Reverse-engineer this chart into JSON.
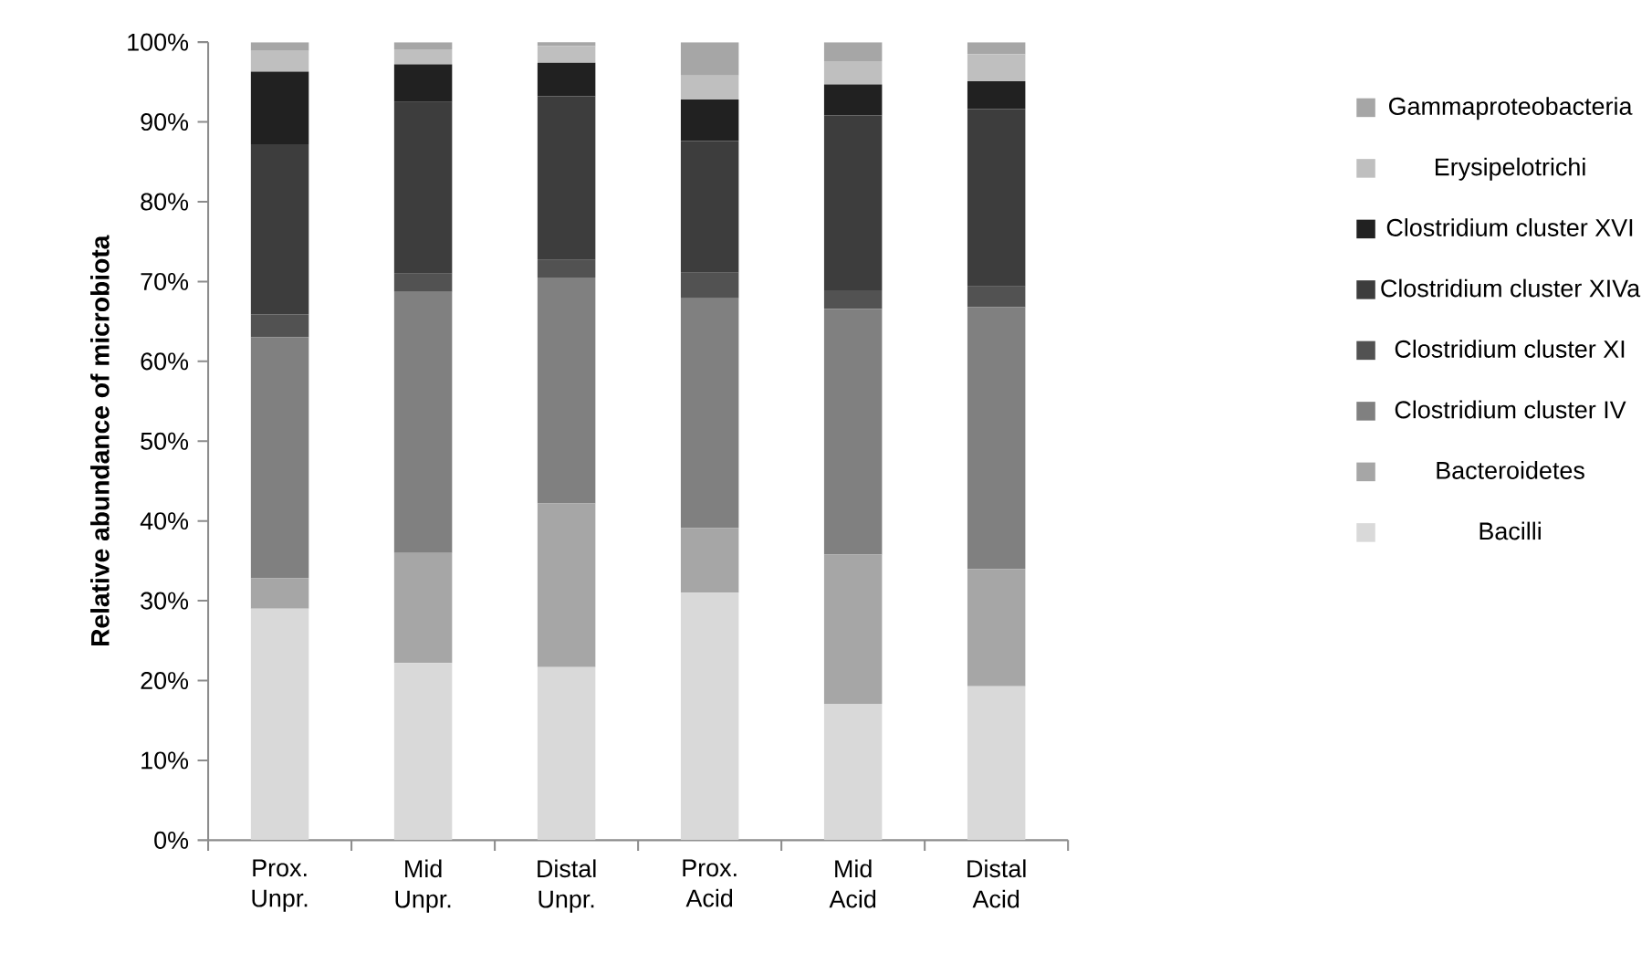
{
  "chart_data": {
    "type": "bar",
    "stacked": true,
    "ylabel": "Relative abundance of microbiota",
    "categories": [
      "Prox. Unpr.",
      "Mid Unpr.",
      "Distal Unpr.",
      "Prox. Acid",
      "Mid Acid",
      "Distal Acid"
    ],
    "series": [
      {
        "name": "Bacilli",
        "color": "#d9d9d9",
        "values": [
          29.0,
          22.2,
          21.7,
          31.0,
          17.1,
          19.3
        ]
      },
      {
        "name": "Bacteroidetes",
        "color": "#a6a6a6",
        "values": [
          3.8,
          13.8,
          20.5,
          8.1,
          18.7,
          14.7
        ]
      },
      {
        "name": "Clostridium cluster IV",
        "color": "#808080",
        "values": [
          30.2,
          32.7,
          28.3,
          28.8,
          30.8,
          32.8
        ]
      },
      {
        "name": "Clostridium cluster XI",
        "color": "#525252",
        "values": [
          2.9,
          2.3,
          2.2,
          3.2,
          2.3,
          2.6
        ]
      },
      {
        "name": "Clostridium cluster XIVa",
        "color": "#3d3d3d",
        "values": [
          21.3,
          21.5,
          20.5,
          16.5,
          21.9,
          22.2
        ]
      },
      {
        "name": "Clostridium cluster XVI",
        "color": "#212121",
        "values": [
          9.1,
          4.7,
          4.2,
          5.2,
          3.9,
          3.5
        ]
      },
      {
        "name": "Erysipelotrichi",
        "color": "#bfbfbf",
        "values": [
          2.6,
          1.9,
          2.1,
          3.0,
          2.9,
          3.4
        ]
      },
      {
        "name": "Gammaproteobacteria",
        "color": "#a6a6a6",
        "values": [
          1.1,
          0.9,
          0.7,
          4.2,
          2.4,
          1.5
        ]
      }
    ],
    "ylim": [
      0,
      100
    ],
    "yticks": [
      {
        "value": 0,
        "label": "0%"
      },
      {
        "value": 10,
        "label": "10%"
      },
      {
        "value": 20,
        "label": "20%"
      },
      {
        "value": 30,
        "label": "30%"
      },
      {
        "value": 40,
        "label": "40%"
      },
      {
        "value": 50,
        "label": "50%"
      },
      {
        "value": 60,
        "label": "60%"
      },
      {
        "value": 70,
        "label": "70%"
      },
      {
        "value": 80,
        "label": "80%"
      },
      {
        "value": 90,
        "label": "90%"
      },
      {
        "value": 100,
        "label": "100%"
      }
    ],
    "grid": false,
    "legend": "right"
  }
}
